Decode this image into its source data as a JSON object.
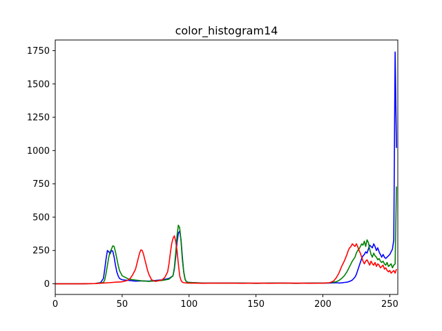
{
  "chart_data": {
    "type": "line",
    "title": "color_histogram14",
    "xlabel": "",
    "ylabel": "",
    "xlim": [
      0,
      256
    ],
    "ylim": [
      -80,
      1830
    ],
    "xticks": [
      0,
      50,
      100,
      150,
      200,
      250
    ],
    "yticks": [
      0,
      250,
      500,
      750,
      1000,
      1250,
      1500,
      1750
    ],
    "grid": false,
    "series": [
      {
        "color": "#0000ff",
        "x": [
          0,
          10,
          20,
          30,
          34,
          36,
          37,
          38,
          39,
          40,
          41,
          42,
          43,
          44,
          45,
          46,
          47,
          48,
          50,
          55,
          60,
          65,
          70,
          75,
          80,
          85,
          88,
          89,
          90,
          91,
          92,
          93,
          94,
          95,
          96,
          97,
          98,
          100,
          105,
          110,
          120,
          130,
          140,
          150,
          160,
          170,
          180,
          190,
          200,
          205,
          210,
          212,
          214,
          216,
          218,
          220,
          222,
          224,
          225,
          226,
          227,
          228,
          229,
          230,
          231,
          232,
          233,
          234,
          235,
          236,
          237,
          238,
          239,
          240,
          241,
          242,
          243,
          244,
          245,
          246,
          247,
          248,
          249,
          250,
          251,
          252,
          253,
          254,
          255
        ],
        "y": [
          0,
          0,
          0,
          2,
          10,
          40,
          110,
          190,
          250,
          240,
          225,
          250,
          245,
          200,
          140,
          90,
          60,
          40,
          30,
          25,
          20,
          22,
          20,
          25,
          30,
          40,
          60,
          110,
          200,
          310,
          380,
          395,
          330,
          200,
          90,
          35,
          15,
          10,
          8,
          6,
          5,
          5,
          5,
          4,
          5,
          5,
          4,
          5,
          5,
          6,
          8,
          6,
          7,
          10,
          12,
          18,
          28,
          50,
          70,
          100,
          130,
          160,
          190,
          210,
          220,
          240,
          230,
          260,
          290,
          280,
          270,
          300,
          280,
          250,
          270,
          240,
          220,
          200,
          220,
          200,
          190,
          200,
          210,
          220,
          240,
          260,
          330,
          1740,
          1020
        ]
      },
      {
        "color": "#008000",
        "x": [
          0,
          10,
          20,
          30,
          36,
          37,
          38,
          39,
          40,
          41,
          42,
          43,
          44,
          45,
          46,
          47,
          48,
          50,
          55,
          60,
          65,
          70,
          75,
          80,
          85,
          88,
          89,
          90,
          91,
          92,
          93,
          94,
          95,
          96,
          97,
          98,
          100,
          105,
          110,
          120,
          130,
          140,
          150,
          160,
          170,
          180,
          190,
          200,
          205,
          210,
          212,
          214,
          216,
          218,
          220,
          222,
          224,
          225,
          226,
          227,
          228,
          229,
          230,
          231,
          232,
          233,
          234,
          235,
          236,
          237,
          238,
          239,
          240,
          241,
          242,
          243,
          244,
          245,
          246,
          247,
          248,
          249,
          250,
          251,
          252,
          253,
          254,
          255
        ],
        "y": [
          0,
          0,
          0,
          2,
          10,
          30,
          80,
          140,
          200,
          240,
          260,
          285,
          280,
          240,
          190,
          140,
          100,
          60,
          35,
          28,
          22,
          18,
          22,
          25,
          35,
          60,
          120,
          230,
          360,
          440,
          420,
          320,
          180,
          90,
          35,
          15,
          10,
          8,
          6,
          5,
          5,
          5,
          4,
          5,
          5,
          4,
          5,
          5,
          8,
          15,
          25,
          40,
          60,
          90,
          130,
          170,
          200,
          230,
          250,
          260,
          280,
          300,
          290,
          320,
          280,
          330,
          310,
          260,
          220,
          200,
          230,
          210,
          200,
          180,
          190,
          170,
          160,
          170,
          150,
          140,
          160,
          130,
          140,
          150,
          120,
          140,
          150,
          730
        ]
      },
      {
        "color": "#ff0000",
        "x": [
          0,
          10,
          20,
          30,
          35,
          40,
          45,
          50,
          54,
          56,
          58,
          60,
          61,
          62,
          63,
          64,
          65,
          66,
          67,
          68,
          69,
          70,
          72,
          75,
          78,
          80,
          82,
          84,
          85,
          86,
          87,
          88,
          89,
          90,
          91,
          92,
          93,
          94,
          95,
          96,
          98,
          100,
          105,
          110,
          120,
          130,
          140,
          150,
          160,
          170,
          180,
          190,
          200,
          205,
          208,
          210,
          212,
          214,
          216,
          218,
          219,
          220,
          221,
          222,
          223,
          224,
          225,
          226,
          227,
          228,
          229,
          230,
          231,
          232,
          233,
          234,
          235,
          236,
          237,
          238,
          239,
          240,
          241,
          242,
          243,
          244,
          245,
          246,
          247,
          248,
          249,
          250,
          251,
          252,
          253,
          254,
          255
        ],
        "y": [
          0,
          0,
          0,
          2,
          5,
          8,
          12,
          15,
          25,
          40,
          70,
          110,
          150,
          190,
          230,
          255,
          250,
          220,
          180,
          140,
          100,
          70,
          30,
          18,
          25,
          30,
          50,
          90,
          150,
          230,
          300,
          340,
          360,
          320,
          250,
          150,
          60,
          25,
          12,
          8,
          6,
          5,
          5,
          4,
          5,
          5,
          4,
          5,
          4,
          5,
          5,
          4,
          5,
          8,
          20,
          45,
          80,
          130,
          170,
          220,
          250,
          270,
          280,
          300,
          290,
          280,
          300,
          280,
          250,
          230,
          200,
          170,
          150,
          170,
          180,
          160,
          140,
          170,
          150,
          140,
          160,
          130,
          150,
          140,
          120,
          130,
          140,
          110,
          120,
          100,
          90,
          100,
          80,
          90,
          100,
          80,
          110
        ]
      }
    ]
  }
}
